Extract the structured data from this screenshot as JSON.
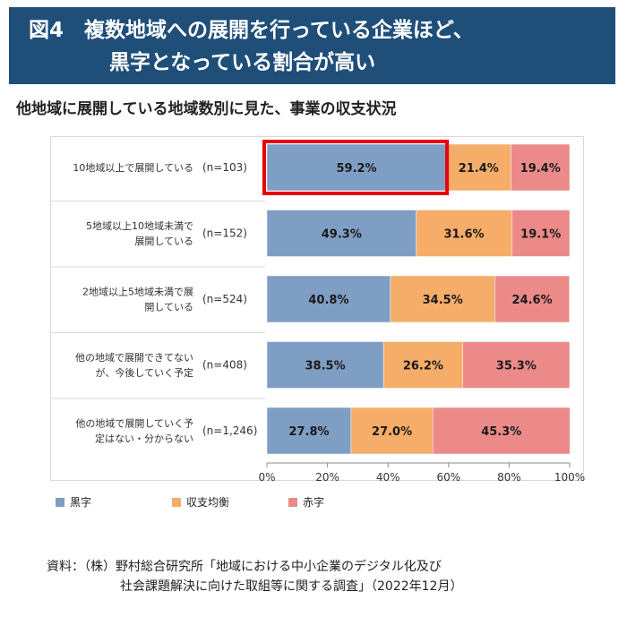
{
  "header": {
    "title_line1": "図4　複数地域への展開を行っている企業ほど、",
    "title_line2": "黒字となっている割合が高い"
  },
  "subtitle": "他地域に展開している地域数別に見た、事業の収支状況",
  "chart_data": {
    "type": "bar",
    "orientation": "horizontal",
    "stacked": true,
    "categories": [
      {
        "label": [
          "10地域以上で展開している"
        ],
        "n": "(n=103)"
      },
      {
        "label": [
          "5地域以上10地域未満で",
          "展開している"
        ],
        "n": "(n=152)"
      },
      {
        "label": [
          "2地域以上5地域未満で展",
          "開している"
        ],
        "n": "(n=524)"
      },
      {
        "label": [
          "他の地域で展開できてない",
          "が、今後していく予定"
        ],
        "n": "(n=408)"
      },
      {
        "label": [
          "他の地域で展開していく予",
          "定はない・分からない"
        ],
        "n": "(n=1,246)"
      }
    ],
    "series": [
      {
        "name": "黒字",
        "color": "#7f9ec4",
        "values": [
          59.2,
          49.3,
          40.8,
          38.5,
          27.8
        ],
        "labels": [
          "59.2%",
          "49.3%",
          "40.8%",
          "38.5%",
          "27.8%"
        ]
      },
      {
        "name": "収支均衡",
        "color": "#f5ad69",
        "values": [
          21.4,
          31.6,
          34.5,
          26.2,
          27.0
        ],
        "labels": [
          "21.4%",
          "31.6%",
          "34.5%",
          "26.2%",
          "27.0%"
        ]
      },
      {
        "name": "赤字",
        "color": "#ec8a8a",
        "values": [
          19.4,
          19.1,
          24.6,
          35.3,
          45.3
        ],
        "labels": [
          "19.4%",
          "19.1%",
          "24.6%",
          "35.3%",
          "45.3%"
        ]
      }
    ],
    "xlim": [
      0,
      100
    ],
    "x_ticks": [
      "0%",
      "20%",
      "40%",
      "60%",
      "80%",
      "100%"
    ],
    "highlight": {
      "category_index": 0,
      "series_index": 0,
      "color": "#e8000b"
    },
    "grid": false,
    "legend_position": "bottom-left"
  },
  "source": {
    "line1": "資料：（株）野村総合研究所「地域における中小企業のデジタル化及び",
    "line2": "社会課題解決に向けた取組等に関する調査」（2022年12月）"
  }
}
